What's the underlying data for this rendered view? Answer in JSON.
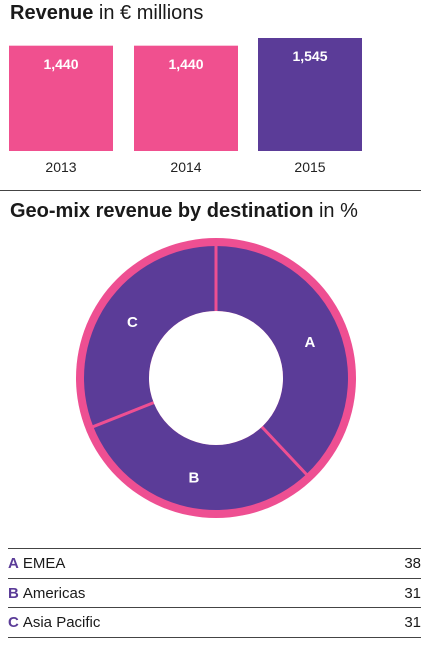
{
  "revenue": {
    "title_bold": "Revenue",
    "title_light": " in € millions",
    "colors": {
      "normal": "#f0508f",
      "highlight": "#5b3c98"
    }
  },
  "geo": {
    "title_bold": "Geo-mix revenue by destination",
    "title_light": " in %",
    "colors": {
      "segment": "#5b3c98",
      "ring": "#ee4f92",
      "hole": "#ffffff"
    }
  },
  "chart_data": [
    {
      "type": "bar",
      "title": "Revenue in € millions",
      "categories": [
        "2013",
        "2014",
        "2015"
      ],
      "values": [
        1440,
        1440,
        1545
      ],
      "value_labels": [
        "1,440",
        "1,440",
        "1,545"
      ],
      "ylim": [
        0,
        1545
      ],
      "highlight_index": 2
    },
    {
      "type": "pie",
      "title": "Geo-mix revenue by destination in %",
      "segments": [
        {
          "letter": "A",
          "name": "EMEA",
          "value": 38
        },
        {
          "letter": "B",
          "name": "Americas",
          "value": 31
        },
        {
          "letter": "C",
          "name": "Asia Pacific",
          "value": 31
        }
      ]
    }
  ]
}
